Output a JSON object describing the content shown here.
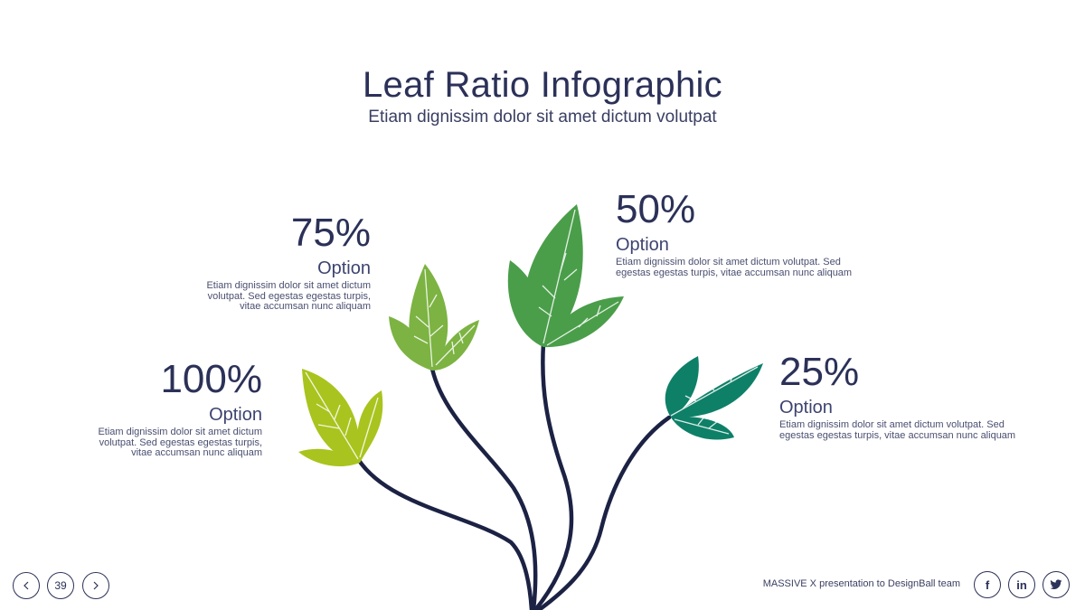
{
  "header": {
    "title": "Leaf Ratio Infographic",
    "subtitle": "Etiam dignissim dolor sit amet dictum volutpat"
  },
  "items": [
    {
      "percent": "75%",
      "label": "Option",
      "description_lines": [
        "Etiam dignissim dolor sit amet dictum",
        "volutpat. Sed egestas egestas turpis,",
        "vitae accumsan nunc aliquam"
      ],
      "leaf_color": "#7cb342"
    },
    {
      "percent": "100%",
      "label": "Option",
      "description_lines": [
        "Etiam dignissim dolor sit amet dictum",
        "volutpat. Sed egestas egestas turpis,",
        "vitae accumsan nunc aliquam"
      ],
      "leaf_color": "#a9c41e"
    },
    {
      "percent": "50%",
      "label": "Option",
      "description_lines": [
        "Etiam dignissim dolor sit amet dictum volutpat. Sed",
        "egestas egestas turpis, vitae accumsan nunc aliquam"
      ],
      "leaf_color": "#4a9e4a"
    },
    {
      "percent": "25%",
      "label": "Option",
      "description_lines": [
        "Etiam dignissim dolor sit amet dictum volutpat. Sed",
        "egestas egestas turpis, vitae accumsan nunc aliquam"
      ],
      "leaf_color": "#0e8068"
    }
  ],
  "footer": {
    "page_number": "39",
    "prev_icon": "chevron-left-icon",
    "next_icon": "chevron-right-icon",
    "credit": "MASSIVE X presentation to DesignBall team",
    "social": [
      {
        "icon": "facebook-icon",
        "glyph": "f"
      },
      {
        "icon": "linkedin-icon",
        "glyph": "in"
      },
      {
        "icon": "twitter-icon",
        "glyph": "🐦"
      }
    ]
  },
  "colors": {
    "text": "#2b3158",
    "stem": "#1c2244"
  }
}
